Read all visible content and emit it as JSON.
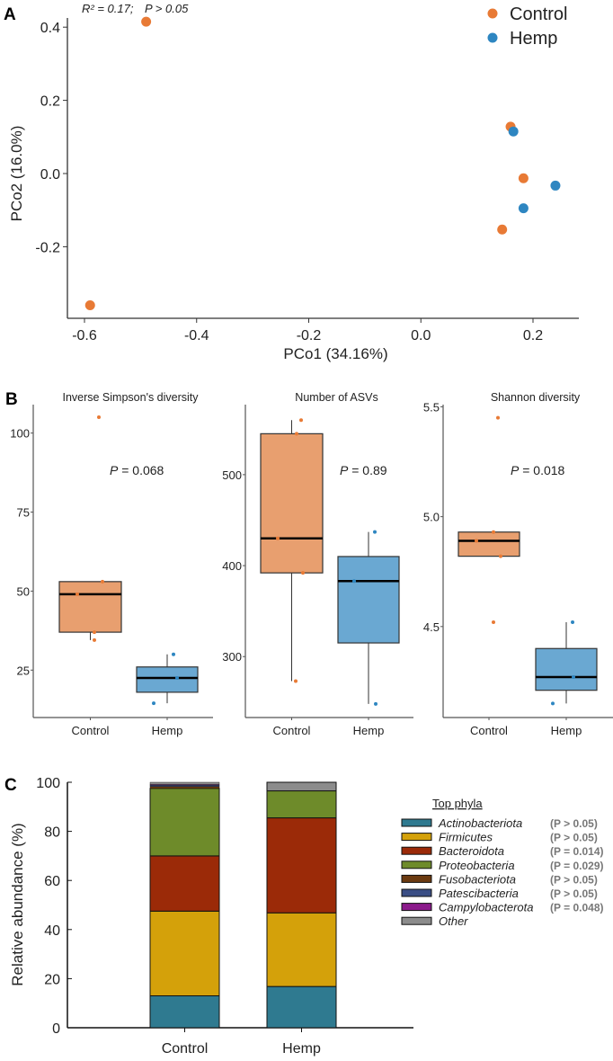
{
  "panel_labels": [
    "A",
    "B",
    "C"
  ],
  "colors": {
    "Control": "#E87A35",
    "Hemp": "#2E86C1",
    "Control_box": "#E89F6F",
    "Hemp_box": "#6AA8D2"
  },
  "chart_data": [
    {
      "type": "scatter",
      "panel": "A",
      "xlabel": "PCo1 (34.16%)",
      "ylabel": "PCo2 (16.0%)",
      "annotation": {
        "r2": "R² = 0.17;",
        "p": "P > 0.05"
      },
      "xlim": [
        -0.62,
        0.27
      ],
      "ylim": [
        -0.39,
        0.45
      ],
      "xticks": [
        -0.6,
        -0.4,
        -0.2,
        0.0,
        0.2
      ],
      "xtick_labels": [
        "-0.6",
        "-0.4",
        "-0.2",
        "0.0",
        "0.2"
      ],
      "yticks": [
        -0.2,
        0.0,
        0.2,
        0.4
      ],
      "ytick_labels": [
        "-0.2",
        "0.0",
        "0.2",
        "0.4"
      ],
      "legend": {
        "position": "top-right",
        "entries": [
          "Control",
          "Hemp"
        ]
      },
      "series": [
        {
          "name": "Control",
          "points": [
            [
              -0.49,
              0.415
            ],
            [
              -0.59,
              -0.36
            ],
            [
              0.16,
              0.128
            ],
            [
              0.183,
              -0.013
            ],
            [
              0.145,
              -0.153
            ]
          ]
        },
        {
          "name": "Hemp",
          "points": [
            [
              0.165,
              0.115
            ],
            [
              0.24,
              -0.033
            ],
            [
              0.183,
              -0.095
            ]
          ]
        }
      ]
    },
    {
      "type": "box",
      "panel": "B",
      "title": "Inverse Simpson's diversity",
      "p_label": "P",
      "p_value": "= 0.068",
      "categories": [
        "Control",
        "Hemp"
      ],
      "ylim": [
        10,
        109
      ],
      "yticks": [
        25,
        50,
        75,
        100
      ],
      "ytick_labels": [
        "25",
        "50",
        "75",
        "100"
      ],
      "boxes": [
        {
          "group": "Control",
          "min": 34.5,
          "q1": 37,
          "median": 49,
          "q3": 53,
          "max": 53,
          "points": [
            105,
            53,
            49,
            37,
            34.5
          ]
        },
        {
          "group": "Hemp",
          "min": 14.5,
          "q1": 18,
          "median": 22.5,
          "q3": 26,
          "max": 30,
          "points": [
            30,
            22.5,
            14.5
          ]
        }
      ]
    },
    {
      "type": "box",
      "panel": "B",
      "title": "Number of ASVs",
      "p_label": "P",
      "p_value": "= 0.89",
      "categories": [
        "Control",
        "Hemp"
      ],
      "ylim": [
        233,
        577
      ],
      "yticks": [
        300,
        400,
        500
      ],
      "ytick_labels": [
        "300",
        "400",
        "500"
      ],
      "boxes": [
        {
          "group": "Control",
          "min": 273,
          "q1": 392,
          "median": 430,
          "q3": 545,
          "max": 560,
          "points": [
            560,
            545,
            430,
            392,
            273
          ]
        },
        {
          "group": "Hemp",
          "min": 248,
          "q1": 315,
          "median": 383,
          "q3": 410,
          "max": 437,
          "points": [
            437,
            383,
            248
          ]
        }
      ]
    },
    {
      "type": "box",
      "panel": "B",
      "title": "Shannon diversity",
      "p_label": "P",
      "p_value": "= 0.018",
      "categories": [
        "Control",
        "Hemp"
      ],
      "ylim": [
        4.086,
        5.51
      ],
      "yticks": [
        4.5,
        5.0,
        5.5
      ],
      "ytick_labels": [
        "4.5",
        "5.0",
        "5.5"
      ],
      "boxes": [
        {
          "group": "Control",
          "min": 4.82,
          "q1": 4.82,
          "median": 4.89,
          "q3": 4.93,
          "max": 4.93,
          "points": [
            5.45,
            4.93,
            4.89,
            4.82,
            4.52
          ]
        },
        {
          "group": "Hemp",
          "min": 4.15,
          "q1": 4.21,
          "median": 4.27,
          "q3": 4.4,
          "max": 4.52,
          "points": [
            4.52,
            4.27,
            4.15
          ]
        }
      ]
    },
    {
      "type": "stacked-bar",
      "panel": "C",
      "ylabel": "Relative abundance (%)",
      "ylim": [
        0,
        100
      ],
      "yticks": [
        0,
        20,
        40,
        60,
        80,
        100
      ],
      "ytick_labels": [
        "0",
        "20",
        "40",
        "60",
        "80",
        "100"
      ],
      "categories": [
        "Control",
        "Hemp"
      ],
      "legend": {
        "title": "Top phyla",
        "position": "right"
      },
      "series": [
        {
          "name": "Actinobacteriota",
          "p": "(P > 0.05)",
          "color": "#2F7A90",
          "values": [
            13,
            16.8
          ]
        },
        {
          "name": "Firmicutes",
          "p": "(P > 0.05)",
          "color": "#D4A10A",
          "values": [
            34.5,
            30
          ]
        },
        {
          "name": "Bacteroidota",
          "p": "(P = 0.014)",
          "color": "#9B2A08",
          "values": [
            22.5,
            38.7
          ]
        },
        {
          "name": "Proteobacteria",
          "p": "(P = 0.029)",
          "color": "#6E8B2A",
          "values": [
            27.5,
            11
          ]
        },
        {
          "name": "Fusobacteriota",
          "p": "(P > 0.05)",
          "color": "#6B3A10",
          "values": [
            0.8,
            0
          ]
        },
        {
          "name": "Patescibacteria",
          "p": "(P > 0.05)",
          "color": "#3A4E85",
          "values": [
            0.5,
            0
          ]
        },
        {
          "name": "Campylobacterota",
          "p": "(P = 0.048)",
          "color": "#8B1A8B",
          "values": [
            0.3,
            0
          ]
        },
        {
          "name": "Other",
          "p": "",
          "color": "#8C8C8C",
          "values": [
            0.9,
            3.5
          ]
        }
      ]
    }
  ]
}
